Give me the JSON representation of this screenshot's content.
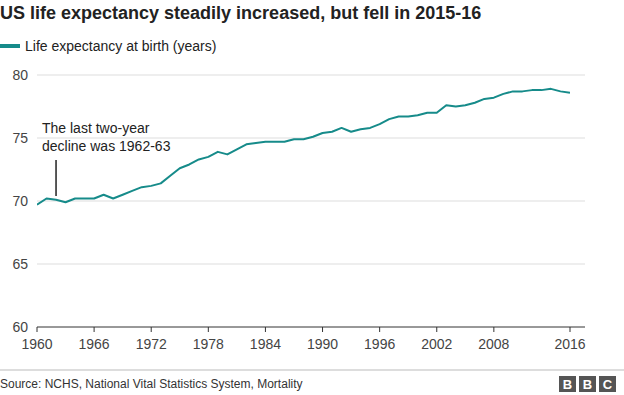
{
  "chart_data": {
    "type": "line",
    "title": "US life expectancy steadily increased, but fell in 2015-16",
    "source": "Source: NCHS, National Vital Statistics System, Mortality",
    "logo": "BBC",
    "x": [
      1960,
      1961,
      1962,
      1963,
      1964,
      1965,
      1966,
      1967,
      1968,
      1969,
      1970,
      1971,
      1972,
      1973,
      1974,
      1975,
      1976,
      1977,
      1978,
      1979,
      1980,
      1981,
      1982,
      1983,
      1984,
      1985,
      1986,
      1987,
      1988,
      1989,
      1990,
      1991,
      1992,
      1993,
      1994,
      1995,
      1996,
      1997,
      1998,
      1999,
      2000,
      2001,
      2002,
      2003,
      2004,
      2005,
      2006,
      2007,
      2008,
      2009,
      2010,
      2011,
      2012,
      2013,
      2014,
      2015,
      2016
    ],
    "series": [
      {
        "name": "Life expectancy at birth (years)",
        "color": "#168b8a",
        "values": [
          69.7,
          70.2,
          70.1,
          69.9,
          70.2,
          70.2,
          70.2,
          70.5,
          70.2,
          70.5,
          70.8,
          71.1,
          71.2,
          71.4,
          72.0,
          72.6,
          72.9,
          73.3,
          73.5,
          73.9,
          73.7,
          74.1,
          74.5,
          74.6,
          74.7,
          74.7,
          74.7,
          74.9,
          74.9,
          75.1,
          75.4,
          75.5,
          75.8,
          75.5,
          75.7,
          75.8,
          76.1,
          76.5,
          76.7,
          76.7,
          76.8,
          77.0,
          77.0,
          77.6,
          77.5,
          77.6,
          77.8,
          78.1,
          78.2,
          78.5,
          78.7,
          78.7,
          78.8,
          78.8,
          78.9,
          78.7,
          78.6
        ]
      }
    ],
    "xlim": [
      1960,
      2016
    ],
    "xticks": [
      1960,
      1966,
      1972,
      1978,
      1984,
      1990,
      1996,
      2002,
      2008,
      2016
    ],
    "ylim": [
      60,
      80
    ],
    "yticks": [
      60,
      65,
      70,
      75,
      80
    ],
    "grid": true,
    "legend": "top-left",
    "annotations": [
      {
        "x": 1962,
        "lines": [
          "The last two-year",
          "decline was 1962-63"
        ]
      }
    ]
  }
}
